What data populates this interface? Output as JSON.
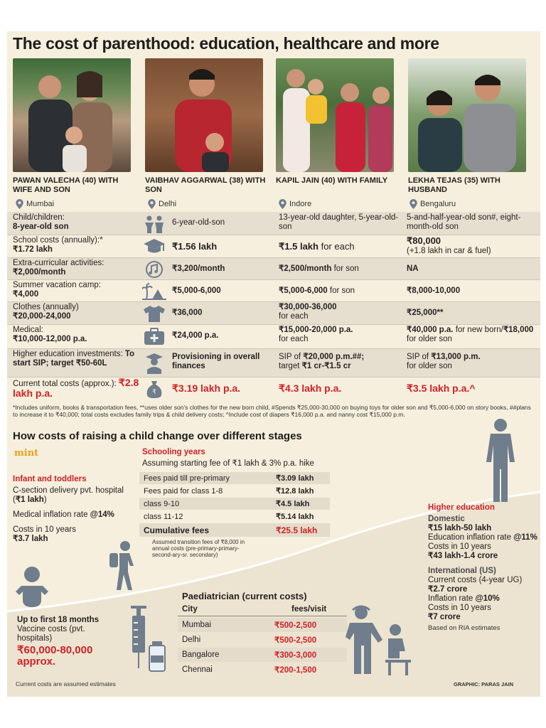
{
  "title": "The cost of parenthood: education, healthcare and more",
  "families": [
    {
      "name": "PAWAN VALECHA (40) WITH WIFE AND SON",
      "location": "Mumbai"
    },
    {
      "name": "VAIBHAV AGGARWAL (38) WITH SON",
      "location": "Delhi"
    },
    {
      "name": "KAPIL JAIN (40) WITH FAMILY",
      "location": "Indore"
    },
    {
      "name": "LEKHA TEJAS (35) WITH HUSBAND",
      "location": "Bengaluru"
    }
  ],
  "rows": [
    {
      "label": "Child/children:",
      "label_bold": "8-year-old son",
      "icon": "children-icon",
      "c2": "6-year-old-son",
      "c3": "13-year-old daughter, 5-year-old-son",
      "c4": "5-and-half-year-old son#, eight-month-old son"
    },
    {
      "label": "School costs (annually):*",
      "label_bold": "₹1.72 lakh",
      "icon": "graduation-cap-icon",
      "c2": "₹1.56 lakh",
      "c3_bold": "₹1.5 lakh",
      "c3": " for each",
      "c4_bold": "₹80,000",
      "c4": "(+1.8 lakh in car & fuel)"
    },
    {
      "label": "Extra-curricular activities:",
      "label_bold": "₹2,000/month",
      "icon": "music-icon",
      "c2": "₹3,200/month",
      "c3_bold": "₹2,500/month",
      "c3": " for son",
      "c4_bold": "NA"
    },
    {
      "label": "Summer vacation camp:",
      "label_bold": "₹4,000",
      "icon": "vacation-icon",
      "c2": "₹5,000-6,000",
      "c3_bold": "₹5,000-6,000",
      "c3": " for son",
      "c4_bold": "₹8,000-10,000"
    },
    {
      "label": "Clothes (annually)",
      "label_bold": "₹20,000-24,000",
      "icon": "shirt-icon",
      "c2": "₹36,000",
      "c3_bold": "₹30,000-36,000",
      "c3": "for each",
      "c4_bold": "₹25,000**"
    },
    {
      "label": "Medical:",
      "label_bold": "₹10,000-12,000 p.a.",
      "icon": "medical-kit-icon",
      "c2": "₹24,000 p.a.",
      "c3_bold": "₹15,000-20,000 p.a.",
      "c3": "for each",
      "c4_bold": "₹40,000 p.a.",
      "c4": " for new born/",
      "c4_bold2": "₹18,000",
      "c4_tail": " for older son"
    },
    {
      "label": "Higher education investments: ",
      "label_bold": "To start SIP; target ₹50-60L",
      "icon": "graduate-icon",
      "c2": "Provisioning in overall finances",
      "c3": "SIP of ",
      "c3_bold": "₹20,000 p.m.##;",
      "c3_tail": "target ",
      "c3_bold2": "₹1 cr-₹1.5 cr",
      "c4": "SIP of ",
      "c4_bold": "₹13,000 p.m.",
      "c4_tail": "for older son"
    },
    {
      "label": "Current total costs (approx.): ",
      "label_bold": "₹2.8 lakh p.a.",
      "icon": "money-bag-icon",
      "c2": "₹3.19 lakh p.a.",
      "c3": "₹4.3 lakh p.a.",
      "c4": "₹3.5 lakh p.a.^"
    }
  ],
  "footnote": "*Includes uniform, books & transportation fees, **uses older son's clothes for the new born child, #Spends ₹25,000-30,000 on buying toys for older son and ₹5,000-6,000 on story books, ##plans to increase it to ₹40,000; total costs excludes family trips & child delivery costs; ^Include cost of diapers ₹16,000 p.a. and nanny cost ₹15,000 p.m.",
  "stages": {
    "heading": "How costs of raising a child change over different stages",
    "brand": "mint",
    "infant": {
      "heading": "Infant and toddlers",
      "delivery": "C-section delivery pvt. hospital (",
      "delivery_bold": "₹1 lakh",
      "delivery_tail": ")",
      "inflation": "Medical inflation rate ",
      "inflation_bold": "@14%",
      "ten_years": "Costs in 10 years",
      "ten_years_bold": "₹3.7 lakh"
    },
    "schooling": {
      "heading": "Schooling years",
      "subheading": "Assuming starting fee of ₹1 lakh & 3% p.a. hike",
      "rows": [
        {
          "label": "Fees paid till pre-primary",
          "value": "₹3.09 lakh"
        },
        {
          "label": "Fees paid for class 1-8",
          "value": "₹12.8 lakh"
        },
        {
          "label": "class 9-10",
          "value": "₹4.5 lakh"
        },
        {
          "label": "class 11-12",
          "value": "₹5.14 lakh"
        }
      ],
      "cumulative_label": "Cumulative fees",
      "cumulative_value": "₹25.5 lakh",
      "note": "Assumed transition fees of ₹8,000 in annual costs (pre-primary-primary-second-ary-sr. secondary)"
    },
    "higher": {
      "heading": "Higher education",
      "domestic_heading": "Domestic",
      "domestic_range": "₹15 lakh-50 lakh",
      "domestic_inflation": "Education inflation rate ",
      "domestic_inflation_bold": "@11%",
      "domestic_ten": "Costs in 10 years",
      "domestic_ten_bold": "₹43 lakh-1.4 crore",
      "intl_heading": "International (US)",
      "intl_current": "Current costs (4-year UG)",
      "intl_current_bold": "₹2.7 crore",
      "intl_inflation": "Inflation rate ",
      "intl_inflation_bold": "@10%",
      "intl_ten": "Costs in 10 years",
      "intl_ten_bold": "₹7 crore",
      "source": "Based on RIA estimates"
    },
    "vaccine": {
      "heading": "Up to first 18 months",
      "text": "Vaccine costs (pvt. hospitals)",
      "value": "₹60,000-80,000 approx."
    },
    "paediatrician": {
      "heading": "Paediatrician (current costs)",
      "col_city": "City",
      "col_fee": "fees/visit",
      "rows": [
        {
          "city": "Mumbai",
          "fee": "₹500-2,500"
        },
        {
          "city": "Delhi",
          "fee": "₹500-2,500"
        },
        {
          "city": "Bangalore",
          "fee": "₹300-3,000"
        },
        {
          "city": "Chennai",
          "fee": "₹200-1,500"
        }
      ]
    }
  },
  "bottom_note": "Current costs are assumed estimates",
  "credit": "GRAPHIC: PARAS JAIN",
  "colors": {
    "accent_red": "#d22027",
    "background": "#f6efdd",
    "shade": "#e6dfcf",
    "figure": "#6f7d8c",
    "brand": "#e8a21a"
  }
}
